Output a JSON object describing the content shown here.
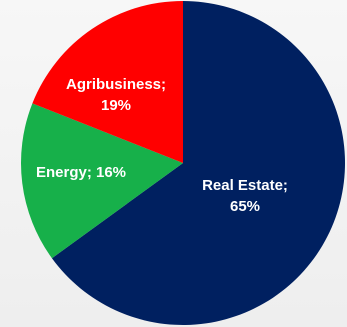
{
  "chart_data": {
    "type": "pie",
    "title": "",
    "slices": [
      {
        "label": "Real Estate",
        "value": 65,
        "display": [
          "Real Estate;",
          "65%"
        ],
        "color": "#002060"
      },
      {
        "label": "Energy",
        "value": 16,
        "display": [
          "Energy; 16%"
        ],
        "color": "#17b04a"
      },
      {
        "label": "Agribusiness",
        "value": 19,
        "display": [
          "Agribusiness;",
          "19%"
        ],
        "color": "#ff0000"
      }
    ],
    "start_angle_deg": 0,
    "direction": "clockwise",
    "legend": "none"
  }
}
